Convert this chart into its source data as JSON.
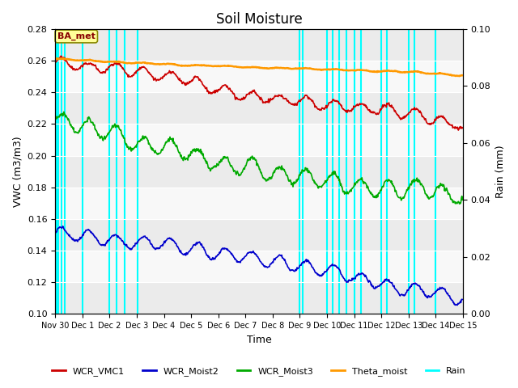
{
  "title": "Soil Moisture",
  "ylabel_left": "VWC (m3/m3)",
  "ylabel_right": "Rain (mm)",
  "xlabel": "Time",
  "ylim_left": [
    0.1,
    0.28
  ],
  "ylim_right": [
    0.0,
    0.1
  ],
  "yticks_left": [
    0.1,
    0.12,
    0.14,
    0.16,
    0.18,
    0.2,
    0.22,
    0.24,
    0.26,
    0.28
  ],
  "yticks_right": [
    0.0,
    0.02,
    0.04,
    0.06,
    0.08,
    0.1
  ],
  "xtick_labels": [
    "Nov 30",
    "Dec 1",
    "Dec 2",
    "Dec 3",
    "Dec 4",
    "Dec 5",
    "Dec 6",
    "Dec 7",
    "Dec 8",
    "Dec 9",
    "Dec 10",
    "Dec 11",
    "Dec 12",
    "Dec 13",
    "Dec 14",
    "Dec 15"
  ],
  "colors": {
    "WCR_VMC1": "#cc0000",
    "WCR_Moist2": "#0000cc",
    "WCR_Moist3": "#00aa00",
    "Theta_moist": "#ff9900",
    "Rain": "#00ffff",
    "bg_light": "#ebebeb",
    "bg_white": "#f8f8f8",
    "BA_met_box": "#ffff99",
    "BA_met_border": "#888800",
    "BA_met_text": "#880000"
  },
  "rain_lines_x": [
    0.05,
    0.12,
    0.22,
    0.35,
    1.0,
    2.0,
    2.25,
    2.55,
    3.02,
    9.0,
    9.12,
    10.0,
    10.2,
    10.45,
    10.7,
    11.0,
    11.25,
    12.0,
    12.2,
    13.0,
    13.2,
    14.0
  ],
  "n_points": 800,
  "seed": 17
}
